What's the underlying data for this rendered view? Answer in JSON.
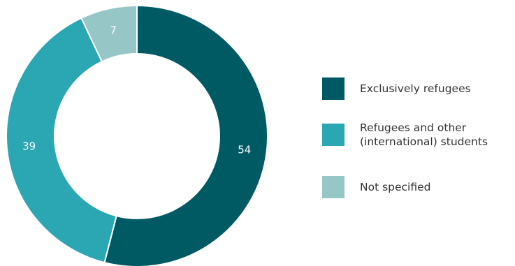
{
  "chart_data": {
    "type": "pie",
    "categories": [
      "Exclusively refugees",
      "Refugees and other\n(international) students",
      "Not specified"
    ],
    "values": [
      54,
      39,
      7
    ],
    "colors": [
      "#005a63",
      "#2aa7b3",
      "#97c6c7"
    ],
    "title": "",
    "legend_position": "right",
    "data_labels_shown": true
  }
}
